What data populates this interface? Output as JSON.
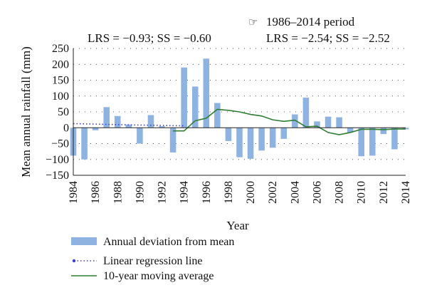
{
  "chart_data": {
    "type": "bar",
    "title": "",
    "xlabel": "Year",
    "ylabel": "Mean annual rainfall (mm)",
    "ylim": [
      -150,
      250
    ],
    "yticks": [
      250,
      200,
      150,
      100,
      50,
      0,
      -50,
      -100,
      -150
    ],
    "ytick_labels": [
      "250",
      "200",
      "150",
      "100",
      "50",
      "0",
      "−50",
      "−100",
      "−150"
    ],
    "xlim": [
      1984,
      2014
    ],
    "xticks": [
      1984,
      1986,
      1988,
      1990,
      1992,
      1994,
      1996,
      1998,
      2000,
      2002,
      2004,
      2006,
      2008,
      2010,
      2012,
      2014
    ],
    "grid": "horizontal dotted",
    "legend_position": "bottom-left",
    "annotations": {
      "left_stats": "LRS = −0.93; SS = −0.60",
      "period_marker": "☞",
      "period_label": "1986–2014 period",
      "right_stats": "LRS = −2.54; SS = −2.52"
    },
    "series": [
      {
        "name": "Annual deviation from mean",
        "type": "bar",
        "color": "#8fb3e0",
        "x": [
          1984,
          1985,
          1986,
          1987,
          1988,
          1989,
          1990,
          1991,
          1992,
          1993,
          1994,
          1995,
          1996,
          1997,
          1998,
          1999,
          2000,
          2001,
          2002,
          2003,
          2004,
          2005,
          2006,
          2007,
          2008,
          2009,
          2010,
          2011,
          2012,
          2013,
          2014
        ],
        "values": [
          -88,
          -100,
          -8,
          65,
          37,
          10,
          -50,
          40,
          5,
          -78,
          190,
          130,
          218,
          78,
          -42,
          -93,
          -98,
          -72,
          -63,
          -35,
          42,
          95,
          20,
          35,
          33,
          -15,
          -90,
          -88,
          -20,
          -68,
          -5
        ]
      },
      {
        "name": "Linear regression line",
        "type": "line",
        "style": "dotted",
        "color": "#3c3cd2",
        "x": [
          1984,
          1989,
          1994
        ],
        "values": [
          13,
          9,
          6
        ]
      },
      {
        "name": "10-year moving average",
        "type": "line",
        "style": "solid",
        "color": "#2e7d32",
        "x": [
          1993,
          1994,
          1995,
          1996,
          1997,
          1998,
          1999,
          2000,
          2001,
          2002,
          2003,
          2004,
          2005,
          2006,
          2007,
          2008,
          2009,
          2010,
          2011,
          2012,
          2013,
          2014
        ],
        "values": [
          -10,
          -10,
          22,
          30,
          58,
          55,
          50,
          42,
          37,
          25,
          20,
          24,
          3,
          5,
          -15,
          -22,
          -15,
          -5,
          -5,
          -6,
          -4,
          -4
        ]
      }
    ]
  }
}
